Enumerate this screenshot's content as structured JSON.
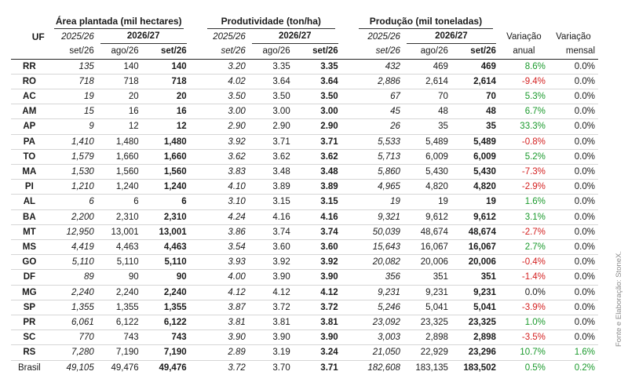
{
  "colors": {
    "positive": "#1a9a2c",
    "negative": "#d42020"
  },
  "header": {
    "uf": "UF",
    "groups": {
      "area": "Área plantada (mil hectares)",
      "prod": "Produtividade (ton/ha)",
      "output": "Produção (mil toneladas)"
    },
    "year_prev": "2025/26",
    "year_cur": "2026/27",
    "month_prev": "set/26",
    "month_a": "ago/26",
    "month_b": "set/26",
    "var_annual_1": "Variação",
    "var_annual_2": "anual",
    "var_monthly_1": "Variação",
    "var_monthly_2": "mensal"
  },
  "rows": [
    {
      "uf": "RR",
      "a1": "135",
      "a2": "140",
      "a3": "140",
      "p1": "3.20",
      "p2": "3.35",
      "p3": "3.35",
      "o1": "432",
      "o2": "469",
      "o3": "469",
      "va": "8.6%",
      "vm": "0.0%"
    },
    {
      "uf": "RO",
      "a1": "718",
      "a2": "718",
      "a3": "718",
      "p1": "4.02",
      "p2": "3.64",
      "p3": "3.64",
      "o1": "2,886",
      "o2": "2,614",
      "o3": "2,614",
      "va": "-9.4%",
      "vm": "0.0%"
    },
    {
      "uf": "AC",
      "a1": "19",
      "a2": "20",
      "a3": "20",
      "p1": "3.50",
      "p2": "3.50",
      "p3": "3.50",
      "o1": "67",
      "o2": "70",
      "o3": "70",
      "va": "5.3%",
      "vm": "0.0%"
    },
    {
      "uf": "AM",
      "a1": "15",
      "a2": "16",
      "a3": "16",
      "p1": "3.00",
      "p2": "3.00",
      "p3": "3.00",
      "o1": "45",
      "o2": "48",
      "o3": "48",
      "va": "6.7%",
      "vm": "0.0%"
    },
    {
      "uf": "AP",
      "a1": "9",
      "a2": "12",
      "a3": "12",
      "p1": "2.90",
      "p2": "2.90",
      "p3": "2.90",
      "o1": "26",
      "o2": "35",
      "o3": "35",
      "va": "33.3%",
      "vm": "0.0%"
    },
    {
      "uf": "PA",
      "a1": "1,410",
      "a2": "1,480",
      "a3": "1,480",
      "p1": "3.92",
      "p2": "3.71",
      "p3": "3.71",
      "o1": "5,533",
      "o2": "5,489",
      "o3": "5,489",
      "va": "-0.8%",
      "vm": "0.0%"
    },
    {
      "uf": "TO",
      "a1": "1,579",
      "a2": "1,660",
      "a3": "1,660",
      "p1": "3.62",
      "p2": "3.62",
      "p3": "3.62",
      "o1": "5,713",
      "o2": "6,009",
      "o3": "6,009",
      "va": "5.2%",
      "vm": "0.0%"
    },
    {
      "uf": "MA",
      "a1": "1,530",
      "a2": "1,560",
      "a3": "1,560",
      "p1": "3.83",
      "p2": "3.48",
      "p3": "3.48",
      "o1": "5,860",
      "o2": "5,430",
      "o3": "5,430",
      "va": "-7.3%",
      "vm": "0.0%"
    },
    {
      "uf": "PI",
      "a1": "1,210",
      "a2": "1,240",
      "a3": "1,240",
      "p1": "4.10",
      "p2": "3.89",
      "p3": "3.89",
      "o1": "4,965",
      "o2": "4,820",
      "o3": "4,820",
      "va": "-2.9%",
      "vm": "0.0%"
    },
    {
      "uf": "AL",
      "a1": "6",
      "a2": "6",
      "a3": "6",
      "p1": "3.10",
      "p2": "3.15",
      "p3": "3.15",
      "o1": "19",
      "o2": "19",
      "o3": "19",
      "va": "1.6%",
      "vm": "0.0%"
    },
    {
      "uf": "BA",
      "a1": "2,200",
      "a2": "2,310",
      "a3": "2,310",
      "p1": "4.24",
      "p2": "4.16",
      "p3": "4.16",
      "o1": "9,321",
      "o2": "9,612",
      "o3": "9,612",
      "va": "3.1%",
      "vm": "0.0%"
    },
    {
      "uf": "MT",
      "a1": "12,950",
      "a2": "13,001",
      "a3": "13,001",
      "p1": "3.86",
      "p2": "3.74",
      "p3": "3.74",
      "o1": "50,039",
      "o2": "48,674",
      "o3": "48,674",
      "va": "-2.7%",
      "vm": "0.0%"
    },
    {
      "uf": "MS",
      "a1": "4,419",
      "a2": "4,463",
      "a3": "4,463",
      "p1": "3.54",
      "p2": "3.60",
      "p3": "3.60",
      "o1": "15,643",
      "o2": "16,067",
      "o3": "16,067",
      "va": "2.7%",
      "vm": "0.0%"
    },
    {
      "uf": "GO",
      "a1": "5,110",
      "a2": "5,110",
      "a3": "5,110",
      "p1": "3.93",
      "p2": "3.92",
      "p3": "3.92",
      "o1": "20,082",
      "o2": "20,006",
      "o3": "20,006",
      "va": "-0.4%",
      "vm": "0.0%"
    },
    {
      "uf": "DF",
      "a1": "89",
      "a2": "90",
      "a3": "90",
      "p1": "4.00",
      "p2": "3.90",
      "p3": "3.90",
      "o1": "356",
      "o2": "351",
      "o3": "351",
      "va": "-1.4%",
      "vm": "0.0%"
    },
    {
      "uf": "MG",
      "a1": "2,240",
      "a2": "2,240",
      "a3": "2,240",
      "p1": "4.12",
      "p2": "4.12",
      "p3": "4.12",
      "o1": "9,231",
      "o2": "9,231",
      "o3": "9,231",
      "va": "0.0%",
      "vm": "0.0%"
    },
    {
      "uf": "SP",
      "a1": "1,355",
      "a2": "1,355",
      "a3": "1,355",
      "p1": "3.87",
      "p2": "3.72",
      "p3": "3.72",
      "o1": "5,246",
      "o2": "5,041",
      "o3": "5,041",
      "va": "-3.9%",
      "vm": "0.0%"
    },
    {
      "uf": "PR",
      "a1": "6,061",
      "a2": "6,122",
      "a3": "6,122",
      "p1": "3.81",
      "p2": "3.81",
      "p3": "3.81",
      "o1": "23,092",
      "o2": "23,325",
      "o3": "23,325",
      "va": "1.0%",
      "vm": "0.0%"
    },
    {
      "uf": "SC",
      "a1": "770",
      "a2": "743",
      "a3": "743",
      "p1": "3.90",
      "p2": "3.90",
      "p3": "3.90",
      "o1": "3,003",
      "o2": "2,898",
      "o3": "2,898",
      "va": "-3.5%",
      "vm": "0.0%"
    },
    {
      "uf": "RS",
      "a1": "7,280",
      "a2": "7,190",
      "a3": "7,190",
      "p1": "2.89",
      "p2": "3.19",
      "p3": "3.24",
      "o1": "21,050",
      "o2": "22,929",
      "o3": "23,296",
      "va": "10.7%",
      "vm": "1.6%"
    }
  ],
  "total": {
    "uf": "Brasil",
    "a1": "49,105",
    "a2": "49,476",
    "a3": "49,476",
    "p1": "3.72",
    "p2": "3.70",
    "p3": "3.71",
    "o1": "182,608",
    "o2": "183,135",
    "o3": "183,502",
    "va": "0.5%",
    "vm": "0.2%"
  },
  "source": "Fonte e Elaboração: StoneX."
}
